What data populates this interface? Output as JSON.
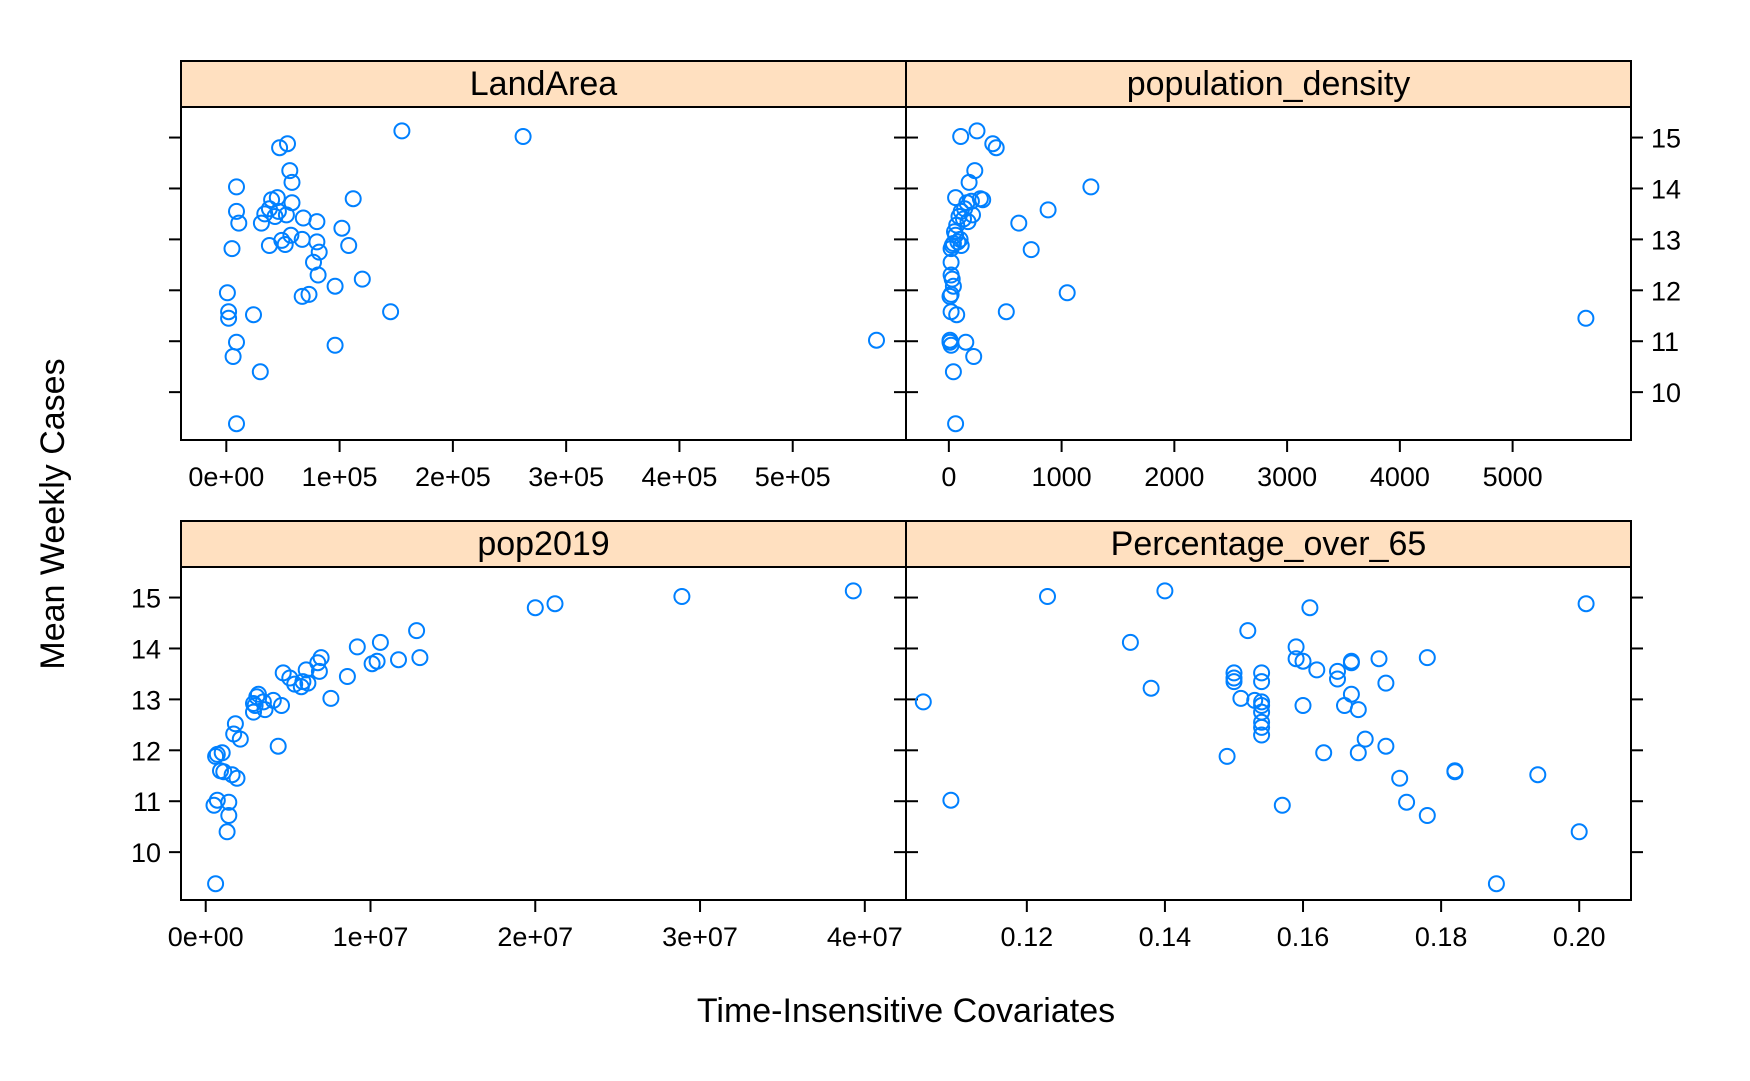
{
  "figure": {
    "xlabel": "Time-Insensitive Covariates",
    "ylabel": "Mean Weekly Cases",
    "point_color": "#0080ff",
    "strip_color": "#ffe0c0"
  },
  "chart_data": [
    {
      "type": "scatter",
      "title": "LandArea",
      "xlim": [
        -40000,
        600000
      ],
      "ylim": [
        9.06,
        15.6
      ],
      "xticks": [
        0,
        100000,
        200000,
        300000,
        400000,
        500000
      ],
      "xtick_labels": [
        "0e+00",
        "1e+05",
        "2e+05",
        "3e+05",
        "4e+05",
        "5e+05"
      ],
      "yticks": [
        10,
        11,
        12,
        13,
        14,
        15
      ],
      "ytick_labels": [
        "10",
        "11",
        "12",
        "13",
        "14",
        "15"
      ],
      "points": [
        [
          155000,
          15.13
        ],
        [
          262000,
          15.02
        ],
        [
          54000,
          14.88
        ],
        [
          47000,
          14.8
        ],
        [
          56000,
          14.35
        ],
        [
          58000,
          14.12
        ],
        [
          9000,
          14.03
        ],
        [
          45000,
          13.82
        ],
        [
          40000,
          13.78
        ],
        [
          58000,
          13.72
        ],
        [
          112000,
          13.8
        ],
        [
          38000,
          13.6
        ],
        [
          46000,
          13.55
        ],
        [
          53000,
          13.48
        ],
        [
          9000,
          13.55
        ],
        [
          34000,
          13.5
        ],
        [
          43000,
          13.45
        ],
        [
          68000,
          13.42
        ],
        [
          80000,
          13.35
        ],
        [
          31000,
          13.32
        ],
        [
          11000,
          13.32
        ],
        [
          102000,
          13.22
        ],
        [
          57000,
          13.08
        ],
        [
          67000,
          13.0
        ],
        [
          49000,
          12.98
        ],
        [
          80000,
          12.95
        ],
        [
          38000,
          12.88
        ],
        [
          108000,
          12.88
        ],
        [
          52000,
          12.9
        ],
        [
          82000,
          12.75
        ],
        [
          5000,
          12.82
        ],
        [
          77000,
          12.55
        ],
        [
          81000,
          12.3
        ],
        [
          120000,
          12.22
        ],
        [
          96000,
          12.08
        ],
        [
          73000,
          11.92
        ],
        [
          67000,
          11.88
        ],
        [
          1000,
          11.95
        ],
        [
          2000,
          11.58
        ],
        [
          145000,
          11.58
        ],
        [
          24000,
          11.52
        ],
        [
          2000,
          11.45
        ],
        [
          574000,
          11.02
        ],
        [
          9000,
          10.98
        ],
        [
          96000,
          10.92
        ],
        [
          6000,
          10.7
        ],
        [
          30000,
          10.4
        ],
        [
          9000,
          9.38
        ]
      ]
    },
    {
      "type": "scatter",
      "title": "population_density",
      "xlim": [
        -380,
        6050
      ],
      "ylim": [
        9.06,
        15.6
      ],
      "xticks": [
        0,
        1000,
        2000,
        3000,
        4000,
        5000
      ],
      "xtick_labels": [
        "0",
        "1000",
        "2000",
        "3000",
        "4000",
        "5000"
      ],
      "yticks": [
        10,
        11,
        12,
        13,
        14,
        15
      ],
      "ytick_labels": [
        "10",
        "11",
        "12",
        "13",
        "14",
        "15"
      ],
      "points": [
        [
          250,
          15.13
        ],
        [
          105,
          15.02
        ],
        [
          390,
          14.88
        ],
        [
          420,
          14.8
        ],
        [
          230,
          14.35
        ],
        [
          180,
          14.12
        ],
        [
          1260,
          14.03
        ],
        [
          60,
          13.82
        ],
        [
          280,
          13.8
        ],
        [
          300,
          13.78
        ],
        [
          200,
          13.75
        ],
        [
          160,
          13.72
        ],
        [
          880,
          13.58
        ],
        [
          140,
          13.6
        ],
        [
          110,
          13.55
        ],
        [
          210,
          13.48
        ],
        [
          90,
          13.45
        ],
        [
          130,
          13.4
        ],
        [
          170,
          13.35
        ],
        [
          620,
          13.32
        ],
        [
          70,
          13.28
        ],
        [
          50,
          13.15
        ],
        [
          60,
          13.08
        ],
        [
          100,
          13.0
        ],
        [
          80,
          12.95
        ],
        [
          110,
          12.88
        ],
        [
          40,
          12.92
        ],
        [
          30,
          12.88
        ],
        [
          730,
          12.8
        ],
        [
          20,
          12.82
        ],
        [
          20,
          12.55
        ],
        [
          20,
          12.3
        ],
        [
          30,
          12.22
        ],
        [
          40,
          12.08
        ],
        [
          1050,
          11.95
        ],
        [
          20,
          11.92
        ],
        [
          10,
          11.88
        ],
        [
          20,
          11.58
        ],
        [
          70,
          11.52
        ],
        [
          510,
          11.58
        ],
        [
          5650,
          11.45
        ],
        [
          10,
          11.02
        ],
        [
          10,
          10.98
        ],
        [
          150,
          10.98
        ],
        [
          20,
          10.92
        ],
        [
          220,
          10.7
        ],
        [
          40,
          10.4
        ],
        [
          60,
          9.38
        ]
      ]
    },
    {
      "type": "scatter",
      "title": "pop2019",
      "xlim": [
        -1500000,
        42500000
      ],
      "ylim": [
        9.06,
        15.6
      ],
      "xticks": [
        0,
        10000000,
        20000000,
        30000000,
        40000000
      ],
      "xtick_labels": [
        "0e+00",
        "1e+07",
        "2e+07",
        "3e+07",
        "4e+07"
      ],
      "yticks": [
        10,
        11,
        12,
        13,
        14,
        15
      ],
      "ytick_labels": [
        "10",
        "11",
        "12",
        "13",
        "14",
        "15"
      ],
      "points": [
        [
          39300000,
          15.13
        ],
        [
          28900000,
          15.02
        ],
        [
          21200000,
          14.88
        ],
        [
          20000000,
          14.8
        ],
        [
          12800000,
          14.35
        ],
        [
          10600000,
          14.12
        ],
        [
          9200000,
          14.03
        ],
        [
          13000000,
          13.82
        ],
        [
          11700000,
          13.78
        ],
        [
          10400000,
          13.75
        ],
        [
          10100000,
          13.7
        ],
        [
          7000000,
          13.82
        ],
        [
          6800000,
          13.72
        ],
        [
          8600000,
          13.45
        ],
        [
          6900000,
          13.55
        ],
        [
          4700000,
          13.52
        ],
        [
          6100000,
          13.58
        ],
        [
          5100000,
          13.42
        ],
        [
          5900000,
          13.35
        ],
        [
          6200000,
          13.32
        ],
        [
          5800000,
          13.25
        ],
        [
          5400000,
          13.3
        ],
        [
          3200000,
          13.1
        ],
        [
          3100000,
          13.05
        ],
        [
          7600000,
          13.02
        ],
        [
          4100000,
          12.98
        ],
        [
          3500000,
          12.95
        ],
        [
          2900000,
          12.92
        ],
        [
          3000000,
          12.88
        ],
        [
          4600000,
          12.88
        ],
        [
          3600000,
          12.8
        ],
        [
          2900000,
          12.75
        ],
        [
          1800000,
          12.52
        ],
        [
          1700000,
          12.32
        ],
        [
          2100000,
          12.22
        ],
        [
          4400000,
          12.08
        ],
        [
          1000000,
          11.95
        ],
        [
          700000,
          11.92
        ],
        [
          600000,
          11.88
        ],
        [
          900000,
          11.6
        ],
        [
          1100000,
          11.58
        ],
        [
          1600000,
          11.52
        ],
        [
          1900000,
          11.45
        ],
        [
          700000,
          11.02
        ],
        [
          500000,
          10.92
        ],
        [
          1400000,
          10.98
        ],
        [
          1400000,
          10.72
        ],
        [
          1300000,
          10.4
        ],
        [
          600000,
          9.38
        ]
      ]
    },
    {
      "type": "scatter",
      "title": "Percentage_over_65",
      "xlim": [
        0.1025,
        0.2075
      ],
      "ylim": [
        9.06,
        15.6
      ],
      "xticks": [
        0.12,
        0.14,
        0.16,
        0.18,
        0.2
      ],
      "xtick_labels": [
        "0.12",
        "0.14",
        "0.16",
        "0.18",
        "0.20"
      ],
      "yticks": [
        10,
        11,
        12,
        13,
        14,
        15
      ],
      "ytick_labels": [
        "10",
        "11",
        "12",
        "13",
        "14",
        "15"
      ],
      "points": [
        [
          0.14,
          15.13
        ],
        [
          0.123,
          15.02
        ],
        [
          0.201,
          14.88
        ],
        [
          0.161,
          14.8
        ],
        [
          0.152,
          14.35
        ],
        [
          0.135,
          14.12
        ],
        [
          0.159,
          14.03
        ],
        [
          0.159,
          13.8
        ],
        [
          0.16,
          13.75
        ],
        [
          0.167,
          13.75
        ],
        [
          0.167,
          13.72
        ],
        [
          0.171,
          13.8
        ],
        [
          0.178,
          13.82
        ],
        [
          0.162,
          13.58
        ],
        [
          0.165,
          13.55
        ],
        [
          0.15,
          13.52
        ],
        [
          0.154,
          13.52
        ],
        [
          0.15,
          13.42
        ],
        [
          0.165,
          13.4
        ],
        [
          0.15,
          13.35
        ],
        [
          0.154,
          13.35
        ],
        [
          0.172,
          13.32
        ],
        [
          0.138,
          13.22
        ],
        [
          0.167,
          13.1
        ],
        [
          0.151,
          13.02
        ],
        [
          0.153,
          12.98
        ],
        [
          0.154,
          12.95
        ],
        [
          0.105,
          12.95
        ],
        [
          0.154,
          12.88
        ],
        [
          0.166,
          12.88
        ],
        [
          0.16,
          12.88
        ],
        [
          0.168,
          12.8
        ],
        [
          0.154,
          12.75
        ],
        [
          0.154,
          12.55
        ],
        [
          0.154,
          12.45
        ],
        [
          0.154,
          12.3
        ],
        [
          0.169,
          12.22
        ],
        [
          0.172,
          12.08
        ],
        [
          0.163,
          11.95
        ],
        [
          0.168,
          11.95
        ],
        [
          0.149,
          11.88
        ],
        [
          0.182,
          11.6
        ],
        [
          0.182,
          11.58
        ],
        [
          0.194,
          11.52
        ],
        [
          0.174,
          11.45
        ],
        [
          0.109,
          11.02
        ],
        [
          0.175,
          10.98
        ],
        [
          0.157,
          10.92
        ],
        [
          0.178,
          10.72
        ],
        [
          0.2,
          10.4
        ],
        [
          0.188,
          9.38
        ]
      ]
    }
  ]
}
